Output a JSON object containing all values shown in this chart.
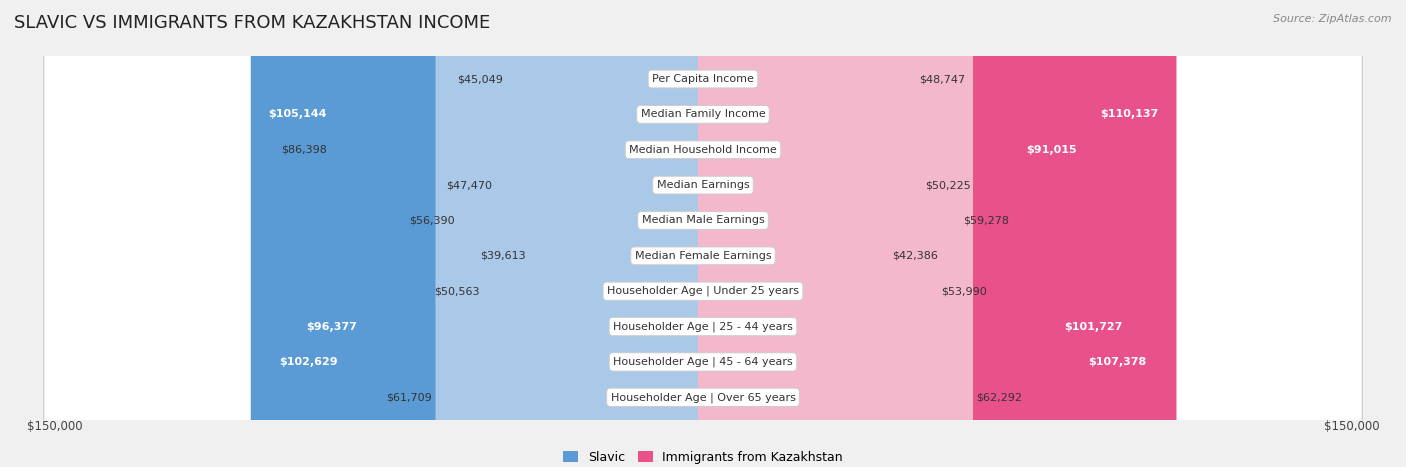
{
  "title": "SLAVIC VS IMMIGRANTS FROM KAZAKHSTAN INCOME",
  "source": "Source: ZipAtlas.com",
  "categories": [
    "Per Capita Income",
    "Median Family Income",
    "Median Household Income",
    "Median Earnings",
    "Median Male Earnings",
    "Median Female Earnings",
    "Householder Age | Under 25 years",
    "Householder Age | 25 - 44 years",
    "Householder Age | 45 - 64 years",
    "Householder Age | Over 65 years"
  ],
  "slavic_values": [
    45049,
    105144,
    86398,
    47470,
    56390,
    39613,
    50563,
    96377,
    102629,
    61709
  ],
  "kazakhstan_values": [
    48747,
    110137,
    91015,
    50225,
    59278,
    42386,
    53990,
    101727,
    107378,
    62292
  ],
  "slavic_labels": [
    "$45,049",
    "$105,144",
    "$86,398",
    "$47,470",
    "$56,390",
    "$39,613",
    "$50,563",
    "$96,377",
    "$102,629",
    "$61,709"
  ],
  "kazakhstan_labels": [
    "$48,747",
    "$110,137",
    "$91,015",
    "$50,225",
    "$59,278",
    "$42,386",
    "$53,990",
    "$101,727",
    "$107,378",
    "$62,292"
  ],
  "slavic_color_light": "#aac8e8",
  "slavic_color_dark": "#5b9bd5",
  "kazakhstan_color_light": "#f4b8cc",
  "kazakhstan_color_dark": "#e8518a",
  "max_value": 150000,
  "bar_height": 0.52,
  "bg_color": "#f0f0f0",
  "row_bg_color": "#ffffff",
  "slavic_dark_threshold": 90000,
  "kaz_dark_threshold": 90000,
  "legend_slavic": "Slavic",
  "legend_kazakhstan": "Immigrants from Kazakhstan",
  "x_label_left": "$150,000",
  "x_label_right": "$150,000",
  "title_fontsize": 13,
  "label_fontsize": 8,
  "cat_fontsize": 8
}
